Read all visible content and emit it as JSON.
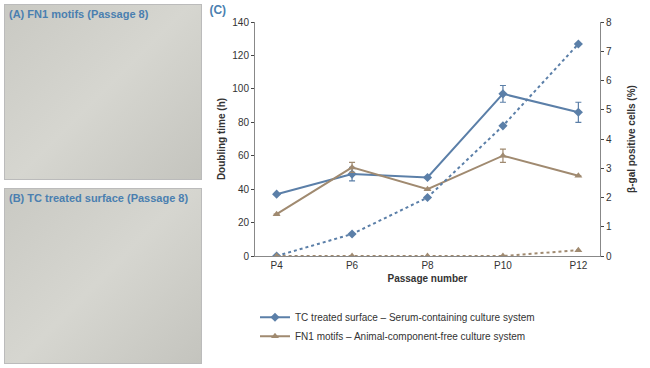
{
  "images": [
    {
      "caption": "(A) FN1 motifs (Passage 8)"
    },
    {
      "caption": "(B) TC treated surface (Passage 8)"
    }
  ],
  "chart_data": {
    "type": "line",
    "title": "(C)",
    "x_label": "Passage number",
    "y_label": "Doubling time (h)",
    "y2_label": "β-gal positive cells (%)",
    "categories": [
      "P4",
      "P6",
      "P8",
      "P10",
      "P12"
    ],
    "ylim": [
      0,
      140
    ],
    "yticks": [
      0,
      20,
      40,
      60,
      80,
      100,
      120,
      140
    ],
    "y2lim": [
      0,
      8
    ],
    "y2ticks": [
      0,
      1,
      2,
      3,
      4,
      5,
      6,
      7,
      8
    ],
    "legend": "bottom",
    "series": [
      {
        "name": "TC treated surface – Serum-containing culture system",
        "color": "#5b7fa8",
        "marker": "diamond",
        "line_style": "solid",
        "values": [
          37,
          49,
          47,
          97,
          86
        ],
        "errors": [
          null,
          4,
          null,
          5,
          6
        ]
      },
      {
        "name": "FN1 motifs – Animal-component-free culture system",
        "color": "#a08a70",
        "marker": "triangle-up",
        "line_style": "solid",
        "values": [
          25,
          53,
          40,
          60,
          48
        ],
        "errors": [
          null,
          3,
          null,
          4,
          null
        ]
      },
      {
        "color": "#5b7fa8",
        "marker": "diamond",
        "line_style": "dotted",
        "axis": "y2",
        "values": [
          0,
          0.75,
          2.0,
          4.45,
          7.25
        ]
      },
      {
        "color": "#a08a70",
        "marker": "triangle-up",
        "line_style": "dotted",
        "axis": "y2",
        "values": [
          0,
          0,
          0,
          0,
          0.2
        ]
      }
    ]
  }
}
